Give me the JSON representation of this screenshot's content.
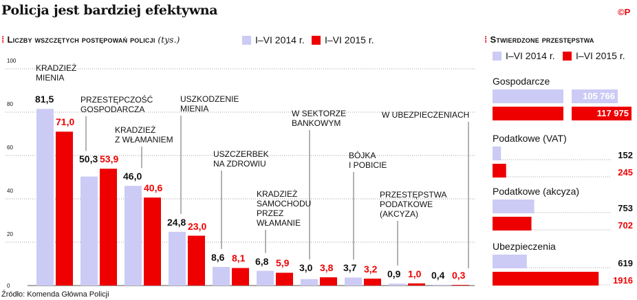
{
  "title": "Policja jest bardziej efektywna",
  "logo": "©P",
  "source": "Źródło: Komenda Główna Policji",
  "colors": {
    "y2014": "#cccbf5",
    "y2015": "#ee0000",
    "accent": "#e30613"
  },
  "chart_data": [
    {
      "type": "bar",
      "title": "Liczby wszczętych postępowań policji",
      "unit": "(tys.)",
      "legend": [
        "I–VI 2014 r.",
        "I–VI 2015 r."
      ],
      "legend_placement": "top",
      "ylim": [
        0,
        100
      ],
      "yticks": [
        "0",
        "20",
        "40",
        "60",
        "80",
        "100"
      ],
      "grid": true,
      "categories": [
        "Kradzież\nmienia",
        "Przestępczość\ngospodarcza",
        "Kradzież\nz włamaniem",
        "Uszkodzenie\nmienia",
        "Uszczerbek\nna zdrowiu",
        "Kradzież\nsamochodu\nprzez\nwłamanie",
        "W sektorze\nbankowym",
        "Bójka\ni pobicie",
        "Przestępstwa\npodatkowe\n(akcyza)",
        "W ubezpieczeniach"
      ],
      "series": [
        {
          "name": "I–VI 2014 r.",
          "values": [
            81.5,
            50.3,
            46.0,
            24.8,
            8.6,
            6.8,
            3.0,
            3.7,
            0.9,
            0.4
          ],
          "labels": [
            "81,5",
            "50,3",
            "46,0",
            "24,8",
            "8,6",
            "6,8",
            "3,0",
            "3,7",
            "0,9",
            "0,4"
          ]
        },
        {
          "name": "I–VI 2015 r.",
          "values": [
            71.0,
            53.9,
            40.6,
            23.0,
            8.1,
            5.9,
            3.8,
            3.2,
            1.0,
            0.3
          ],
          "labels": [
            "71,0",
            "53,9",
            "40,6",
            "23,0",
            "8,1",
            "5,9",
            "3,8",
            "3,2",
            "1,0",
            "0,3"
          ]
        }
      ]
    },
    {
      "type": "bar",
      "orientation": "horizontal",
      "title": "Stwierdzone przestępstwa",
      "legend": [
        "I–VI 2014 r.",
        "I–VI 2015 r."
      ],
      "categories": [
        "Gospodarcze",
        "Podatkowe (VAT)",
        "Podatkowe (akcyza)",
        "Ubezpieczenia"
      ],
      "series": [
        {
          "name": "I–VI 2014 r.",
          "values": [
            105766,
            152,
            753,
            619
          ],
          "labels": [
            "105 766",
            "152",
            "753",
            "619"
          ]
        },
        {
          "name": "I–VI 2015 r.",
          "values": [
            117975,
            245,
            702,
            1916
          ],
          "labels": [
            "117 975",
            "245",
            "702",
            "1916"
          ]
        }
      ],
      "axis_break": "Gospodarcze"
    }
  ]
}
